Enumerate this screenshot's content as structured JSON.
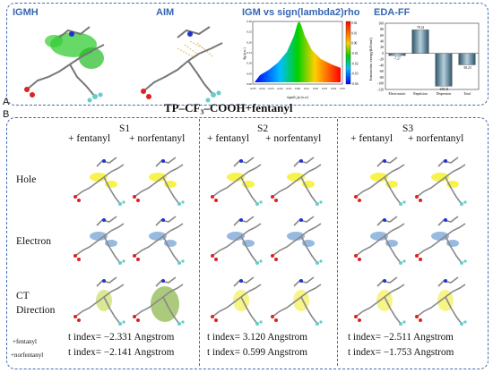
{
  "panel_a": {
    "letter": "A",
    "headers": {
      "igmh": "IGMH",
      "aim": "AIM",
      "igm_sign": "IGM vs sign(lambda2)rho",
      "eda": "EDA-FF"
    },
    "system_title": "TP–CF₃–COOH+fentanyl",
    "scatter": {
      "ylabel": "δg (a.u.)",
      "xlabel": "sign(λ₂)ρ (a.u.)",
      "x_ticks": [
        "-0.05",
        "-0.04",
        "-0.03",
        "-0.02",
        "-0.01",
        "0.00",
        "0.01",
        "0.02",
        "0.03",
        "0.04",
        "0.05"
      ],
      "y_ticks": [
        "0.00",
        "0.05",
        "0.10",
        "0.15",
        "0.20",
        "0.25",
        "0.30"
      ],
      "colorbar_ticks": [
        "0.02",
        "0.01",
        "0.00",
        "-0.01",
        "-0.02",
        "-0.03",
        "-0.04"
      ]
    },
    "eda_chart": {
      "ylabel": "Interaction energy(kJ/mol)",
      "categories": [
        "Electrostatic",
        "Repulsion",
        "Dispersion",
        "Total"
      ],
      "values": [
        -7.27,
        78.14,
        -109.31,
        -38.23
      ],
      "value_labels": [
        "-7.27",
        "78.14",
        "-109.31",
        "-38.23"
      ],
      "y_ticks": [
        "100",
        "80",
        "60",
        "40",
        "20",
        "0",
        "-20",
        "-40",
        "-60",
        "-80",
        "-100",
        "-120"
      ],
      "ylim": [
        -120,
        100
      ]
    }
  },
  "panel_b": {
    "letter": "B",
    "columns": [
      {
        "state": "S1",
        "c1": "+ fentanyl",
        "c2": "+ norfentanyl",
        "t1": "t index= −2.331 Angstrom",
        "t2": "t index= −2.141 Angstrom"
      },
      {
        "state": "S2",
        "c1": "+ fentanyl",
        "c2": "+ norfentanyl",
        "t1": "t index= 3.120 Angstrom",
        "t2": "t index= 0.599 Angstrom"
      },
      {
        "state": "S3",
        "c1": "+ fentanyl",
        "c2": "+ norfentanyl",
        "t1": "t index= −2.511 Angstrom",
        "t2": "t index= −1.753 Angstrom"
      }
    ],
    "rows": {
      "hole": "Hole",
      "electron": "Electron",
      "ct1": "CT",
      "ct2": "Direction"
    },
    "legend": {
      "a": "+fentanyl",
      "b": "+norfentanyl"
    }
  }
}
